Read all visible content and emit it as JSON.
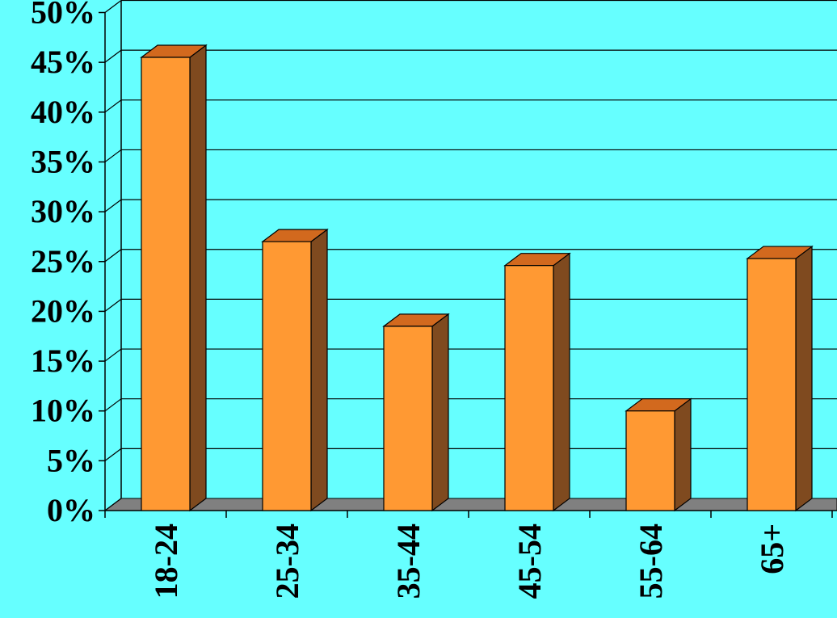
{
  "chart_data": {
    "type": "bar",
    "style": "3d-column",
    "categories": [
      "18-24",
      "25-34",
      "35-44",
      "45-54",
      "55-64",
      "65+"
    ],
    "values": [
      45.5,
      27,
      18.5,
      24.6,
      10,
      25.3
    ],
    "y_tick_labels": [
      "0%",
      "5%",
      "10%",
      "15%",
      "20%",
      "25%",
      "30%",
      "35%",
      "40%",
      "45%",
      "50%"
    ],
    "ylim": [
      0,
      50
    ],
    "ytick_step": 5,
    "grid": true,
    "legend": "none",
    "colors": {
      "background": "#66FFFF",
      "bar_front": "#FF9933",
      "bar_top": "#D2691E",
      "bar_side": "#7F4A1F",
      "floor": "#808080",
      "grid": "#000000"
    }
  }
}
